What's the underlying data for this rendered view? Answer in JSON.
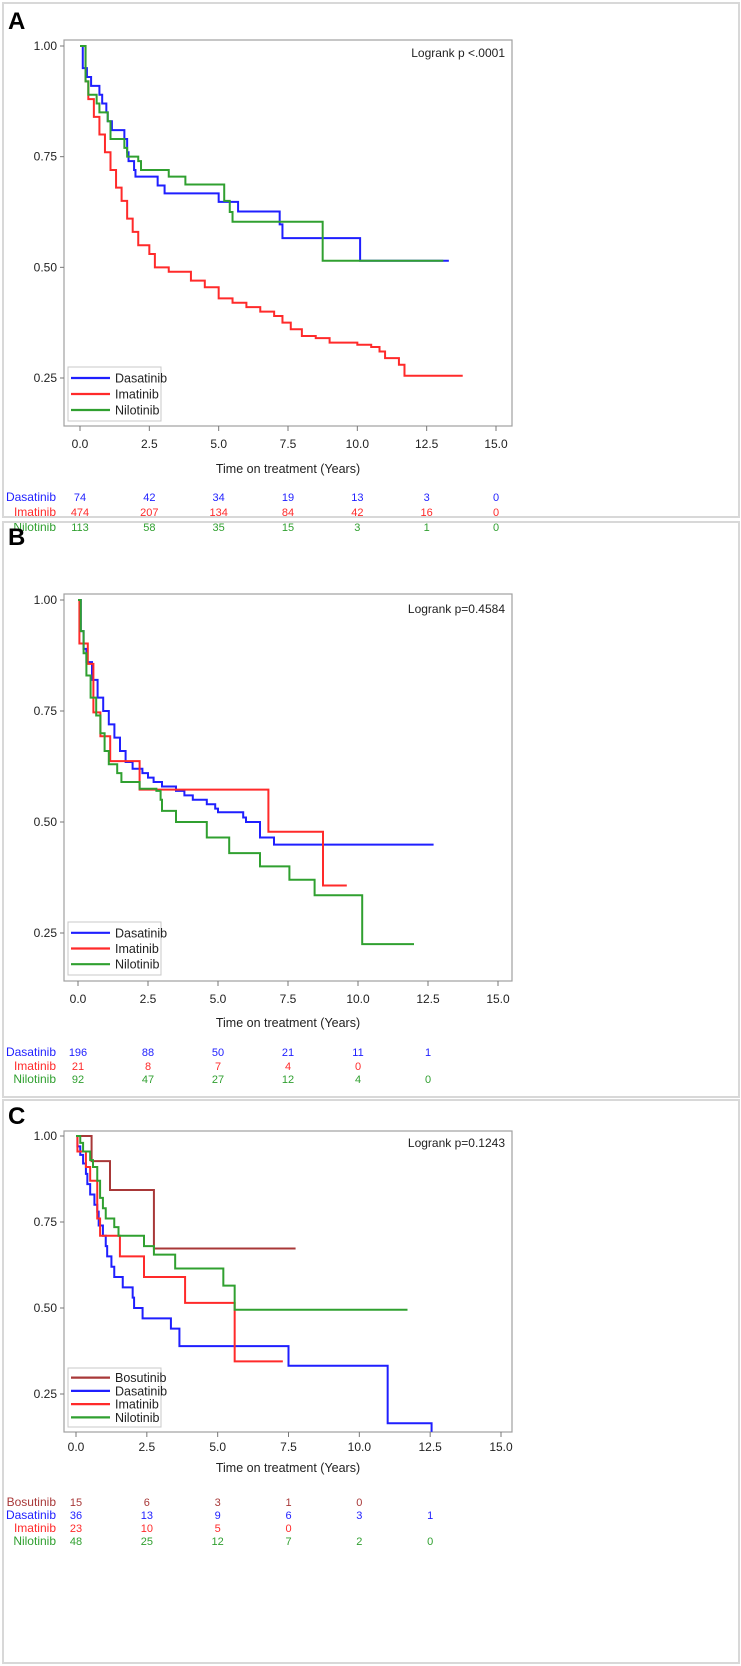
{
  "chart_data": [
    {
      "type": "line",
      "subtype": "kaplan-meier",
      "panel_label": "A",
      "annotation": "Logrank p <.0001",
      "xlabel": "Time on treatment (Years)",
      "ylabel": "",
      "xlim": [
        0,
        15
      ],
      "ylim": [
        0.14,
        1.0
      ],
      "xticks": [
        "0.0",
        "2.5",
        "5.0",
        "7.5",
        "10.0",
        "12.5",
        "15.0"
      ],
      "yticks": [
        "1.00",
        "0.75",
        "0.50",
        "0.25"
      ],
      "legend_position": "bottom-left",
      "series": [
        {
          "name": "Dasatinib",
          "color": "#1f1fff",
          "end": 13.3,
          "steps": [
            [
              0,
              1
            ],
            [
              0.1,
              0.95
            ],
            [
              0.25,
              0.93
            ],
            [
              0.4,
              0.91
            ],
            [
              0.7,
              0.89
            ],
            [
              0.8,
              0.87
            ],
            [
              0.95,
              0.85
            ],
            [
              1.0,
              0.83
            ],
            [
              1.15,
              0.81
            ],
            [
              1.6,
              0.79
            ],
            [
              1.7,
              0.76
            ],
            [
              1.75,
              0.74
            ],
            [
              1.95,
              0.72
            ],
            [
              2.0,
              0.705
            ],
            [
              2.8,
              0.685
            ],
            [
              3.05,
              0.667
            ],
            [
              5.0,
              0.648
            ],
            [
              5.7,
              0.626
            ],
            [
              7.2,
              0.597
            ],
            [
              7.3,
              0.566
            ],
            [
              10.1,
              0.515
            ]
          ],
          "at_risk": [
            74,
            42,
            34,
            19,
            13,
            3,
            0
          ]
        },
        {
          "name": "Imatinib",
          "color": "#ff2a2a",
          "end": 13.8,
          "steps": [
            [
              0,
              1
            ],
            [
              0.2,
              0.92
            ],
            [
              0.3,
              0.88
            ],
            [
              0.5,
              0.84
            ],
            [
              0.7,
              0.8
            ],
            [
              0.9,
              0.76
            ],
            [
              1.1,
              0.72
            ],
            [
              1.3,
              0.68
            ],
            [
              1.5,
              0.65
            ],
            [
              1.7,
              0.61
            ],
            [
              1.9,
              0.58
            ],
            [
              2.1,
              0.55
            ],
            [
              2.5,
              0.53
            ],
            [
              2.7,
              0.5
            ],
            [
              3.2,
              0.49
            ],
            [
              4.0,
              0.47
            ],
            [
              4.5,
              0.455
            ],
            [
              5.0,
              0.43
            ],
            [
              5.5,
              0.42
            ],
            [
              6.0,
              0.41
            ],
            [
              6.5,
              0.4
            ],
            [
              7.0,
              0.39
            ],
            [
              7.3,
              0.375
            ],
            [
              7.6,
              0.36
            ],
            [
              8.0,
              0.345
            ],
            [
              8.5,
              0.34
            ],
            [
              9.0,
              0.33
            ],
            [
              10.0,
              0.325
            ],
            [
              10.5,
              0.32
            ],
            [
              10.8,
              0.31
            ],
            [
              11.0,
              0.295
            ],
            [
              11.5,
              0.28
            ],
            [
              11.7,
              0.255
            ]
          ],
          "at_risk": [
            474,
            207,
            134,
            84,
            42,
            16,
            0
          ]
        },
        {
          "name": "Nilotinib",
          "color": "#30a030",
          "end": 13.1,
          "steps": [
            [
              0,
              1
            ],
            [
              0.2,
              0.92
            ],
            [
              0.3,
              0.89
            ],
            [
              0.6,
              0.87
            ],
            [
              0.7,
              0.85
            ],
            [
              1.0,
              0.83
            ],
            [
              1.1,
              0.79
            ],
            [
              1.6,
              0.77
            ],
            [
              1.7,
              0.75
            ],
            [
              2.1,
              0.74
            ],
            [
              2.2,
              0.72
            ],
            [
              3.2,
              0.705
            ],
            [
              3.8,
              0.687
            ],
            [
              5.2,
              0.65
            ],
            [
              5.4,
              0.625
            ],
            [
              5.5,
              0.603
            ],
            [
              8.75,
              0.515
            ]
          ],
          "at_risk": [
            113,
            58,
            35,
            15,
            3,
            1,
            0
          ]
        }
      ]
    },
    {
      "type": "line",
      "subtype": "kaplan-meier",
      "panel_label": "B",
      "annotation": "Logrank p=0.4584",
      "xlabel": "Time on treatment (Years)",
      "ylabel": "",
      "xlim": [
        0,
        15
      ],
      "ylim": [
        0.14,
        1.0
      ],
      "xticks": [
        "0.0",
        "2.5",
        "5.0",
        "7.5",
        "10.0",
        "12.5",
        "15.0"
      ],
      "yticks": [
        "1.00",
        "0.75",
        "0.50",
        "0.25"
      ],
      "legend_position": "bottom-left",
      "series": [
        {
          "name": "Dasatinib",
          "color": "#1f1fff",
          "end": 12.7,
          "steps": [
            [
              0,
              1
            ],
            [
              0.1,
              0.93
            ],
            [
              0.2,
              0.89
            ],
            [
              0.3,
              0.86
            ],
            [
              0.5,
              0.82
            ],
            [
              0.7,
              0.78
            ],
            [
              0.9,
              0.75
            ],
            [
              1.1,
              0.72
            ],
            [
              1.3,
              0.69
            ],
            [
              1.5,
              0.66
            ],
            [
              1.7,
              0.635
            ],
            [
              1.95,
              0.62
            ],
            [
              2.3,
              0.61
            ],
            [
              2.5,
              0.6
            ],
            [
              2.7,
              0.59
            ],
            [
              3.0,
              0.58
            ],
            [
              3.5,
              0.57
            ],
            [
              3.8,
              0.56
            ],
            [
              4.1,
              0.55
            ],
            [
              4.6,
              0.54
            ],
            [
              4.9,
              0.53
            ],
            [
              5.0,
              0.522
            ],
            [
              5.9,
              0.51
            ],
            [
              6.0,
              0.5
            ],
            [
              6.5,
              0.465
            ],
            [
              7.0,
              0.449
            ]
          ],
          "at_risk": [
            196,
            88,
            50,
            21,
            11,
            1
          ]
        },
        {
          "name": "Imatinib",
          "color": "#ff2a2a",
          "end": 9.6,
          "steps": [
            [
              0,
              1
            ],
            [
              0.05,
              0.902
            ],
            [
              0.35,
              0.856
            ],
            [
              0.55,
              0.747
            ],
            [
              0.8,
              0.693
            ],
            [
              1.15,
              0.637
            ],
            [
              2.2,
              0.573
            ],
            [
              6.8,
              0.478
            ],
            [
              8.75,
              0.357
            ]
          ],
          "at_risk": [
            21,
            8,
            7,
            4,
            0
          ]
        },
        {
          "name": "Nilotinib",
          "color": "#30a030",
          "end": 12.0,
          "steps": [
            [
              0,
              1
            ],
            [
              0.1,
              0.93
            ],
            [
              0.2,
              0.88
            ],
            [
              0.3,
              0.83
            ],
            [
              0.45,
              0.78
            ],
            [
              0.65,
              0.74
            ],
            [
              0.8,
              0.7
            ],
            [
              0.95,
              0.66
            ],
            [
              1.1,
              0.63
            ],
            [
              1.4,
              0.61
            ],
            [
              1.55,
              0.59
            ],
            [
              2.2,
              0.575
            ],
            [
              2.8,
              0.57
            ],
            [
              2.95,
              0.55
            ],
            [
              3.0,
              0.525
            ],
            [
              3.5,
              0.5
            ],
            [
              4.6,
              0.465
            ],
            [
              5.4,
              0.43
            ],
            [
              6.5,
              0.4
            ],
            [
              7.55,
              0.37
            ],
            [
              8.45,
              0.335
            ],
            [
              10.15,
              0.225
            ]
          ],
          "at_risk": [
            92,
            47,
            27,
            12,
            4,
            0
          ]
        }
      ]
    },
    {
      "type": "line",
      "subtype": "kaplan-meier",
      "panel_label": "C",
      "annotation": "Logrank p=0.1243",
      "xlabel": "Time on treatment (Years)",
      "ylabel": "",
      "xlim": [
        0,
        15
      ],
      "ylim": [
        0.14,
        1.0
      ],
      "xticks": [
        "0.0",
        "2.5",
        "5.0",
        "7.5",
        "10.0",
        "12.5",
        "15.0"
      ],
      "yticks": [
        "1.00",
        "0.75",
        "0.50",
        "0.25"
      ],
      "legend_position": "bottom-left",
      "series": [
        {
          "name": "Bosutinib",
          "color": "#a83838",
          "end": 7.75,
          "steps": [
            [
              0,
              1
            ],
            [
              0.55,
              0.927
            ],
            [
              1.2,
              0.843
            ],
            [
              2.75,
              0.673
            ]
          ],
          "at_risk": [
            15,
            6,
            3,
            1,
            0
          ]
        },
        {
          "name": "Dasatinib",
          "color": "#1f1fff",
          "end": 12.55,
          "steps": [
            [
              0,
              1
            ],
            [
              0.05,
              0.97
            ],
            [
              0.15,
              0.945
            ],
            [
              0.25,
              0.92
            ],
            [
              0.35,
              0.89
            ],
            [
              0.4,
              0.86
            ],
            [
              0.5,
              0.83
            ],
            [
              0.65,
              0.8
            ],
            [
              0.75,
              0.78
            ],
            [
              0.8,
              0.74
            ],
            [
              0.95,
              0.71
            ],
            [
              1.05,
              0.68
            ],
            [
              1.1,
              0.65
            ],
            [
              1.25,
              0.62
            ],
            [
              1.35,
              0.59
            ],
            [
              1.65,
              0.56
            ],
            [
              2.0,
              0.53
            ],
            [
              2.05,
              0.5
            ],
            [
              2.35,
              0.47
            ],
            [
              3.35,
              0.44
            ],
            [
              3.65,
              0.389
            ],
            [
              7.5,
              0.332
            ],
            [
              11.0,
              0.165
            ],
            [
              12.55,
              0.14
            ]
          ],
          "at_risk": [
            36,
            13,
            9,
            6,
            3,
            1
          ]
        },
        {
          "name": "Imatinib",
          "color": "#ff2a2a",
          "end": 7.3,
          "steps": [
            [
              0,
              1
            ],
            [
              0.05,
              0.955
            ],
            [
              0.35,
              0.91
            ],
            [
              0.5,
              0.87
            ],
            [
              0.75,
              0.76
            ],
            [
              0.85,
              0.71
            ],
            [
              1.55,
              0.65
            ],
            [
              2.4,
              0.59
            ],
            [
              3.85,
              0.515
            ],
            [
              5.6,
              0.345
            ]
          ],
          "at_risk": [
            23,
            10,
            5,
            0
          ]
        },
        {
          "name": "Nilotinib",
          "color": "#30a030",
          "end": 11.7,
          "steps": [
            [
              0,
              1
            ],
            [
              0.15,
              0.98
            ],
            [
              0.25,
              0.955
            ],
            [
              0.5,
              0.93
            ],
            [
              0.6,
              0.91
            ],
            [
              0.75,
              0.87
            ],
            [
              0.85,
              0.82
            ],
            [
              0.95,
              0.79
            ],
            [
              1.05,
              0.76
            ],
            [
              1.35,
              0.735
            ],
            [
              1.5,
              0.71
            ],
            [
              2.4,
              0.68
            ],
            [
              2.75,
              0.655
            ],
            [
              3.5,
              0.615
            ],
            [
              5.2,
              0.565
            ],
            [
              5.6,
              0.495
            ]
          ],
          "at_risk": [
            48,
            25,
            12,
            7,
            2,
            0
          ]
        }
      ]
    }
  ]
}
